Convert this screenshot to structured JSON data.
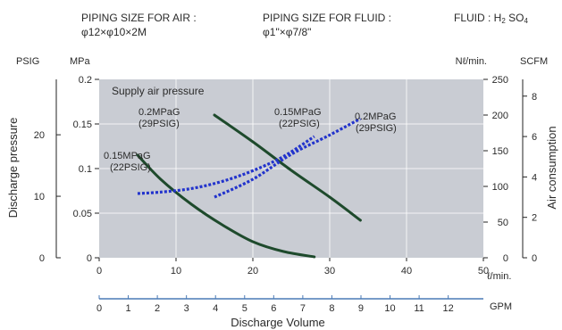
{
  "header": {
    "air_label": "PIPING SIZE FOR AIR :",
    "air_value": "φ12×φ10×2M",
    "fluid_label": "PIPING SIZE FOR FLUID :",
    "fluid_value": "φ1\"×φ7/8\"",
    "fluid_type_label": "FLUID : ",
    "fluid_type_h": "H",
    "fluid_type_h_sub": "2",
    "fluid_type_so": " SO",
    "fluid_type_so_sub": "4"
  },
  "chart_data": {
    "type": "line",
    "plot_label": "Supply air pressure",
    "xlabel": "Discharge Volume",
    "x_unit": "ℓ/min.",
    "x2_unit": "GPM",
    "xlim": [
      0,
      50
    ],
    "x_ticks": [
      0,
      10,
      20,
      30,
      40,
      50
    ],
    "x2_ticks": [
      0,
      1,
      2,
      3,
      4,
      5,
      6,
      7,
      8,
      9,
      10,
      11,
      12
    ],
    "ylabel_left": "Discharge pressure",
    "y_units_left": [
      "PSIG",
      "MPa"
    ],
    "ylim_mpa": [
      0,
      0.2
    ],
    "y_ticks_mpa": [
      "0",
      "0.05",
      "0.1",
      "0.15",
      "0.2"
    ],
    "y_ticks_psig": [
      0,
      10,
      20
    ],
    "ylabel_right": "Air consumption",
    "y_units_right": [
      "Nℓ/min.",
      "SCFM"
    ],
    "y2lim_nl": [
      0,
      250
    ],
    "y_ticks_nl": [
      0,
      50,
      100,
      150,
      200,
      250
    ],
    "y_ticks_scfm": [
      0,
      2,
      4,
      6,
      8
    ],
    "pressure_series": [
      {
        "name": "0.2MPaG\n(29PSIG)",
        "x": [
          15,
          20,
          25,
          30,
          34
        ],
        "y": [
          0.16,
          0.13,
          0.098,
          0.068,
          0.042
        ]
      },
      {
        "name": "0.15MPaG\n(22PSIG)",
        "x": [
          5,
          8,
          12,
          16,
          20,
          24,
          28
        ],
        "y": [
          0.115,
          0.088,
          0.06,
          0.037,
          0.018,
          0.007,
          0.001
        ]
      }
    ],
    "consumption_series": [
      {
        "name": "0.15MPaG\n(22PSIG)",
        "x": [
          5,
          8,
          12,
          16,
          20,
          24,
          28
        ],
        "y": [
          90,
          92,
          97,
          107,
          122,
          142,
          170
        ]
      },
      {
        "name": "0.2MPaG\n(29PSIG)",
        "x": [
          15,
          20,
          25,
          30,
          34
        ],
        "y": [
          85,
          110,
          145,
          172,
          195
        ]
      }
    ]
  }
}
